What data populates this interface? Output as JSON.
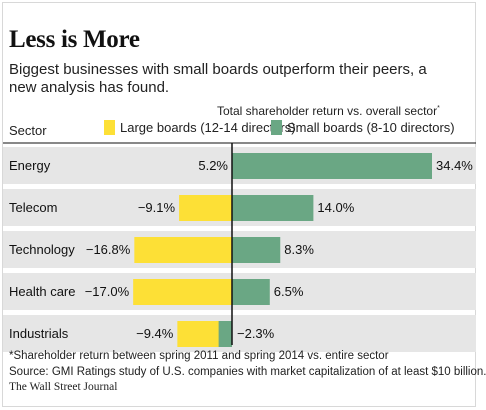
{
  "header": {
    "title": "Less is More",
    "subtitle": "Biggest businesses with small boards outperform their peers, a new analysis has found."
  },
  "chart_data": {
    "type": "bar",
    "orientation": "horizontal-diverging",
    "title": "Total shareholder return vs. overall sector",
    "title_marker": "*",
    "category_axis_label": "Sector",
    "categories": [
      "Energy",
      "Telecom",
      "Technology",
      "Health care",
      "Industrials"
    ],
    "series": [
      {
        "name": "Large boards (12-14 directors)",
        "color": "#fde036",
        "values": [
          5.2,
          -9.1,
          -16.8,
          -17.0,
          -9.4
        ],
        "labels": [
          "5.2%",
          "−9.1%",
          "−16.8%",
          "−17.0%",
          "−9.4%"
        ]
      },
      {
        "name": "Small boards (8-10 directors)",
        "color": "#6aa784",
        "values": [
          34.4,
          14.0,
          8.3,
          6.5,
          -2.3
        ],
        "labels": [
          "34.4%",
          "14.0%",
          "8.3%",
          "6.5%",
          "−2.3%"
        ]
      }
    ],
    "grid": false,
    "legend_position": "top"
  },
  "notes": {
    "footnote": "*Shareholder return between spring 2011 and spring 2014 vs. entire sector",
    "source": "Source: GMI Ratings study of U.S. companies with market capitalization of at least $10 billion.",
    "publisher": "The Wall Street Journal"
  },
  "colors": {
    "row_band": "#e6e6e6",
    "axis": "#111111"
  }
}
